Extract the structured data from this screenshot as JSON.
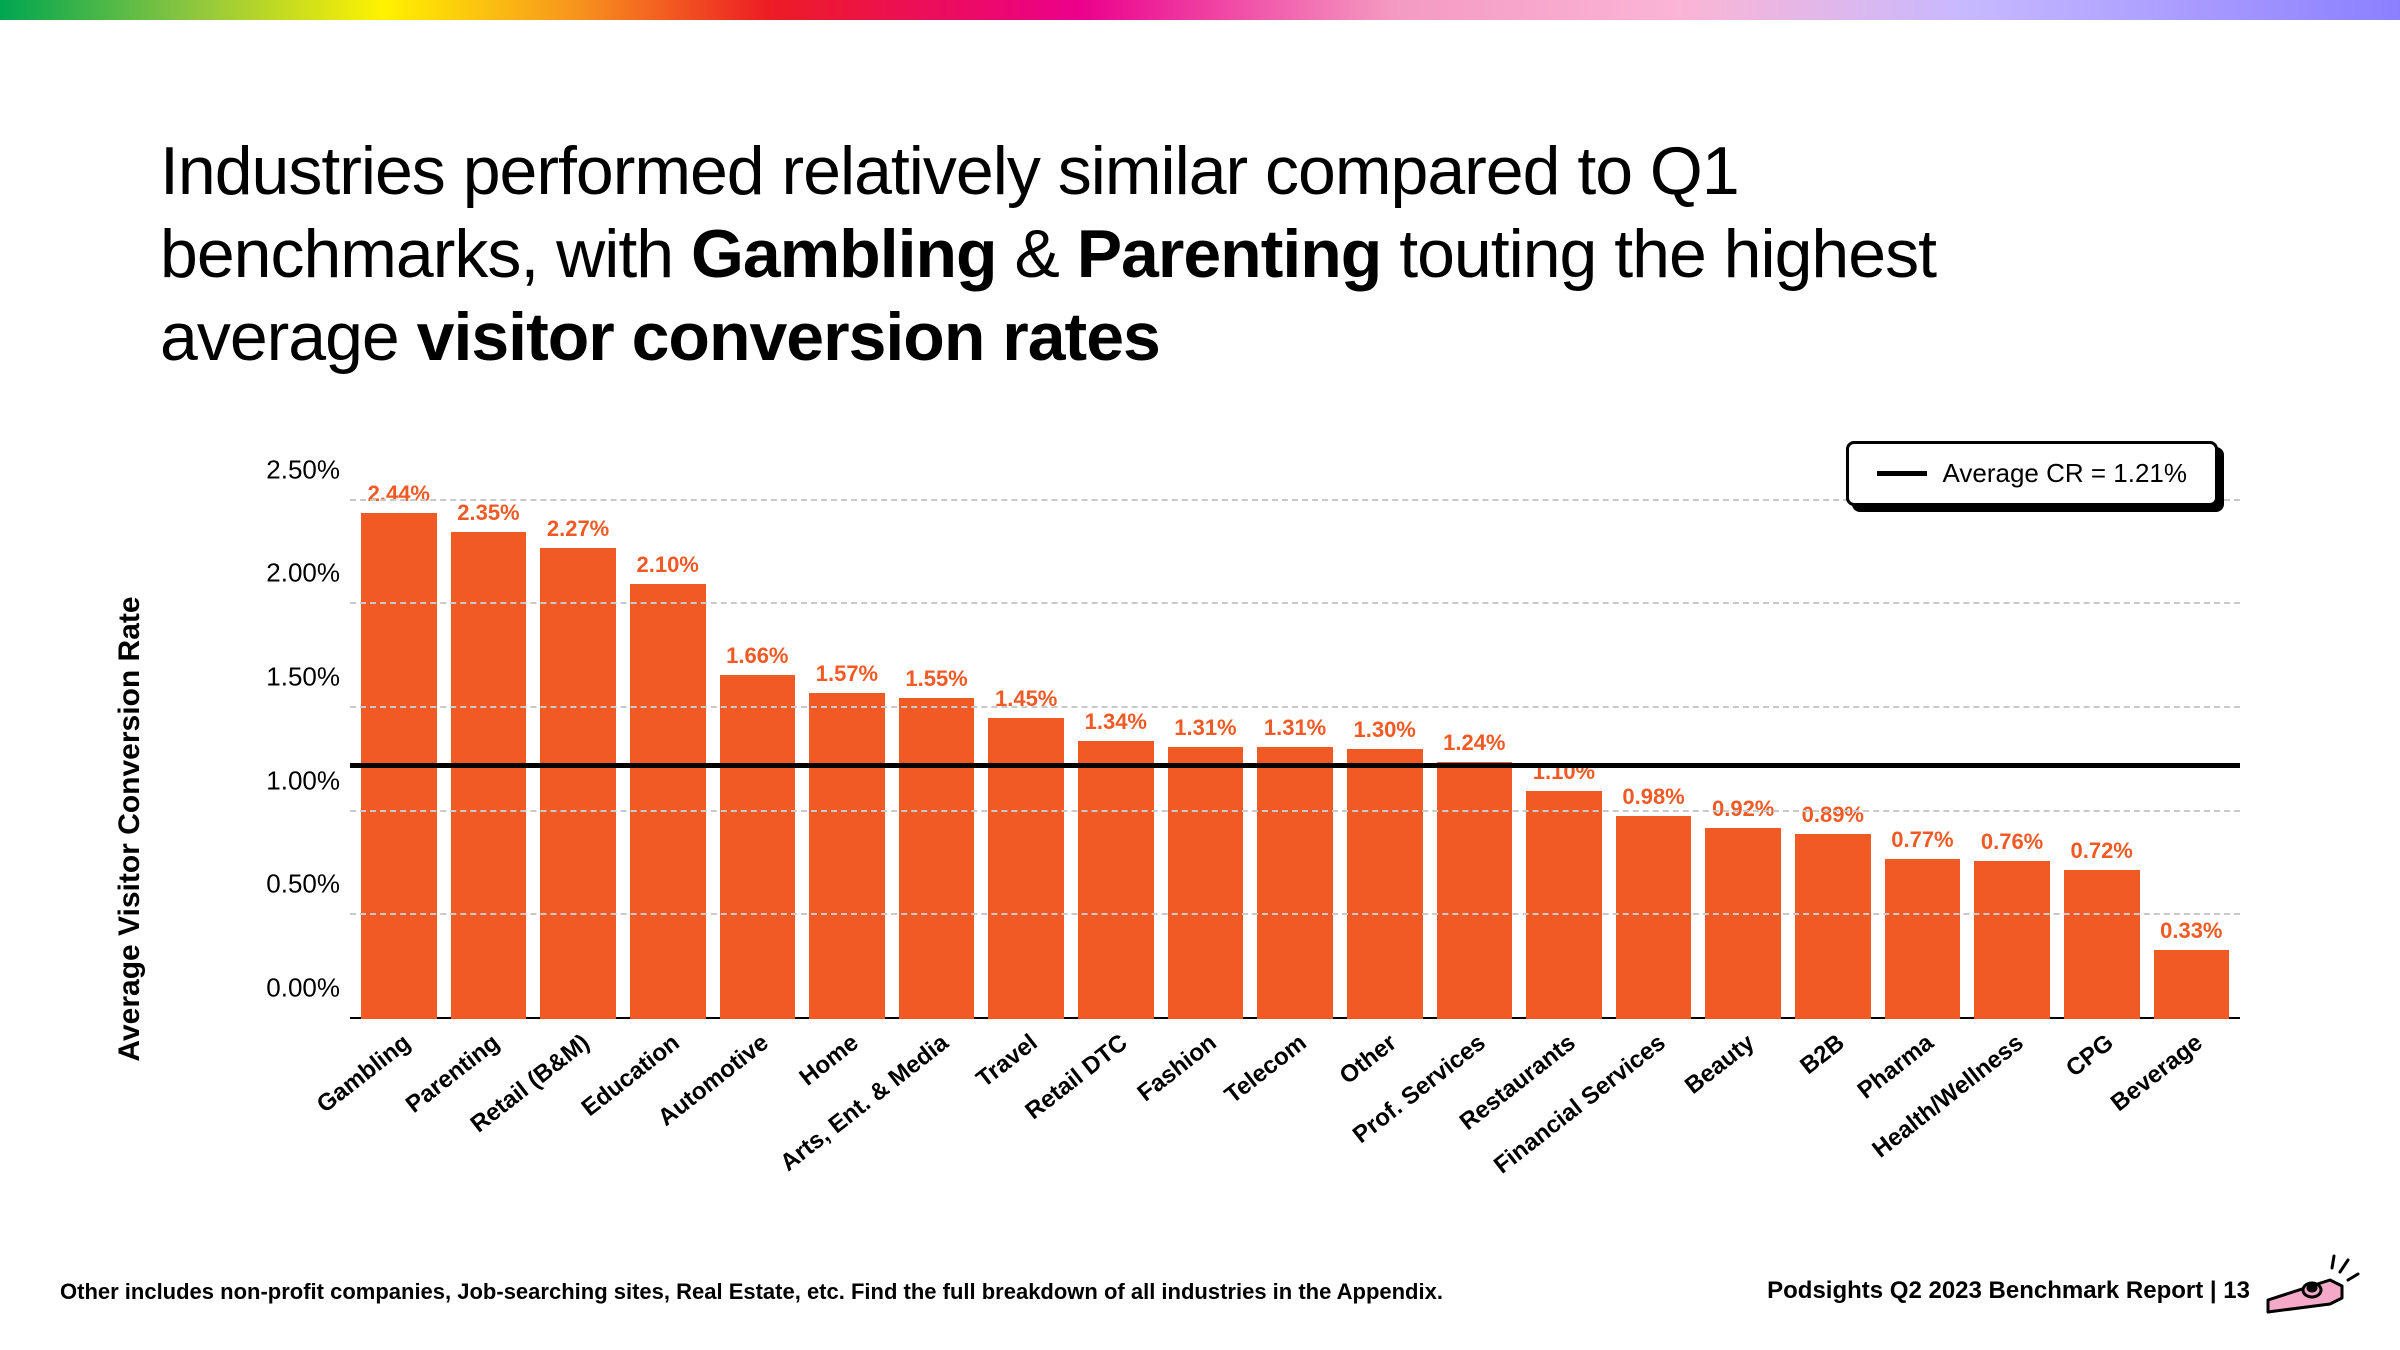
{
  "heading_html": "Industries performed relatively similar compared to Q1 benchmarks, with <b>Gambling</b> & <b>Parenting</b> touting the highest average <b>visitor conversion rates</b>",
  "chart": {
    "type": "bar",
    "yaxis_title": "Average Visitor Conversion Rate",
    "ymax": 2.75,
    "ytick_step": 0.5,
    "yticks": [
      "0.00%",
      "0.50%",
      "1.00%",
      "1.50%",
      "2.00%",
      "2.50%"
    ],
    "average_value": 1.21,
    "legend_text": "Average CR = 1.21%",
    "bar_color": "#f15a24",
    "label_color": "#f15a24",
    "grid_color": "#c9c9c9",
    "background_color": "#ffffff",
    "avg_line_color": "#000000",
    "items": [
      {
        "label": "Gambling",
        "value": 2.44,
        "display": "2.44%"
      },
      {
        "label": "Parenting",
        "value": 2.35,
        "display": "2.35%"
      },
      {
        "label": "Retail (B&M)",
        "value": 2.27,
        "display": "2.27%"
      },
      {
        "label": "Education",
        "value": 2.1,
        "display": "2.10%"
      },
      {
        "label": "Automotive",
        "value": 1.66,
        "display": "1.66%"
      },
      {
        "label": "Home",
        "value": 1.57,
        "display": "1.57%"
      },
      {
        "label": "Arts, Ent. & Media",
        "value": 1.55,
        "display": "1.55%"
      },
      {
        "label": "Travel",
        "value": 1.45,
        "display": "1.45%"
      },
      {
        "label": "Retail DTC",
        "value": 1.34,
        "display": "1.34%"
      },
      {
        "label": "Fashion",
        "value": 1.31,
        "display": "1.31%"
      },
      {
        "label": "Telecom",
        "value": 1.31,
        "display": "1.31%"
      },
      {
        "label": "Other",
        "value": 1.3,
        "display": "1.30%"
      },
      {
        "label": "Prof. Services",
        "value": 1.24,
        "display": "1.24%"
      },
      {
        "label": "Restaurants",
        "value": 1.1,
        "display": "1.10%"
      },
      {
        "label": "Financial Services",
        "value": 0.98,
        "display": "0.98%"
      },
      {
        "label": "Beauty",
        "value": 0.92,
        "display": "0.92%"
      },
      {
        "label": "B2B",
        "value": 0.89,
        "display": "0.89%"
      },
      {
        "label": "Pharma",
        "value": 0.77,
        "display": "0.77%"
      },
      {
        "label": "Health/Wellness",
        "value": 0.76,
        "display": "0.76%"
      },
      {
        "label": "CPG",
        "value": 0.72,
        "display": "0.72%"
      },
      {
        "label": "Beverage",
        "value": 0.33,
        "display": "0.33%"
      }
    ]
  },
  "footnote": "Other includes non-profit companies, Job-searching sites, Real Estate, etc. Find the full breakdown of all industries in the Appendix.",
  "page_label": "Podsights Q2 2023 Benchmark Report | 13"
}
